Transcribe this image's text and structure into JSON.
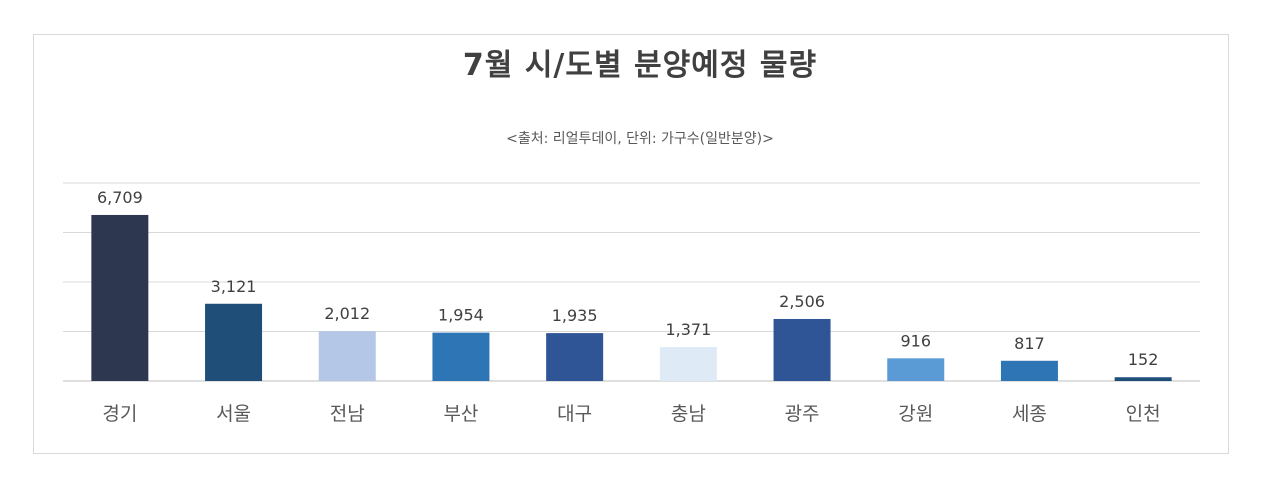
{
  "chart_data": {
    "type": "bar",
    "title": "7월 시/도별 분양예정 물량",
    "subtitle": "<출처: 리얼투데이, 단위: 가구수(일반분양)>",
    "categories": [
      "경기",
      "서울",
      "전남",
      "부산",
      "대구",
      "충남",
      "광주",
      "강원",
      "세종",
      "인천"
    ],
    "values": [
      6709,
      3121,
      2012,
      1954,
      1935,
      1371,
      2506,
      916,
      817,
      152
    ],
    "value_labels": [
      "6,709",
      "3,121",
      "2,012",
      "1,954",
      "1,935",
      "1,371",
      "2,506",
      "916",
      "817",
      "152"
    ],
    "bar_colors": [
      "#2d3850",
      "#1f4e79",
      "#b4c7e7",
      "#2e75b6",
      "#2f5597",
      "#deebf7",
      "#2f5597",
      "#5b9bd5",
      "#2e75b6",
      "#1f4e79"
    ],
    "grid": true,
    "legend": "none",
    "xlabel": "",
    "ylabel": ""
  }
}
